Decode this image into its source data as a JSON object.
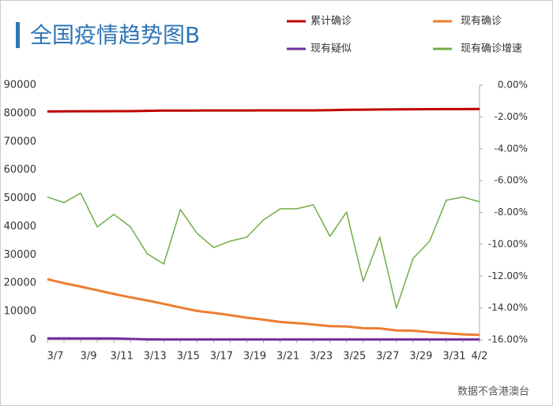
{
  "chart_data": {
    "type": "line",
    "title": "全国疫情趋势图B",
    "source": "数据不含港澳台",
    "categories": [
      "3/7",
      null,
      "3/9",
      null,
      "3/11",
      null,
      "3/13",
      null,
      "3/15",
      null,
      "3/17",
      null,
      "3/19",
      null,
      "3/21",
      null,
      "3/23",
      null,
      "3/25",
      null,
      "3/27",
      null,
      "3/29",
      null,
      "3/31",
      null,
      "4/2"
    ],
    "series": [
      {
        "name": "累计确诊",
        "color": "#c00000",
        "values": [
          80700,
          80735,
          80754,
          80778,
          80793,
          80813,
          80900,
          81000,
          81020,
          81030,
          81040,
          81050,
          81060,
          81070,
          81080,
          81090,
          81100,
          81150,
          81300,
          81340,
          81394,
          81439,
          81470,
          81500,
          81520,
          81540,
          81560
        ]
      },
      {
        "name": "现有确诊",
        "color": "#ed7d31",
        "values": [
          21400,
          20000,
          18800,
          17500,
          16200,
          15000,
          13900,
          12700,
          11400,
          10200,
          9500,
          8700,
          7800,
          7100,
          6300,
          5900,
          5400,
          4800,
          4700,
          4100,
          4000,
          3300,
          3200,
          2700,
          2300,
          1900,
          1700
        ]
      },
      {
        "name": "现有疑似",
        "color": "#7030a0",
        "values": [
          500,
          500,
          500,
          500,
          500,
          300,
          150,
          120,
          100,
          100,
          100,
          100,
          100,
          100,
          100,
          100,
          100,
          100,
          100,
          100,
          100,
          100,
          100,
          100,
          100,
          100,
          100
        ]
      },
      {
        "name": "现有确诊增速",
        "color": "#70ad47",
        "axis": "y2",
        "values": [
          -7.03,
          -7.38,
          -6.78,
          -8.91,
          -8.12,
          -8.91,
          -10.59,
          -11.24,
          -7.82,
          -9.31,
          -10.2,
          -9.8,
          -9.55,
          -8.47,
          -7.77,
          -7.77,
          -7.52,
          -9.5,
          -7.97,
          -12.33,
          -9.55,
          -14.01,
          -10.89,
          -9.8,
          -7.23,
          -7.03,
          -7.33
        ]
      }
    ],
    "ylim": [
      0,
      90000
    ],
    "yticks": [
      0,
      10000,
      20000,
      30000,
      40000,
      50000,
      60000,
      70000,
      80000,
      90000
    ],
    "y2lim": [
      -16,
      0
    ],
    "y2ticks": [
      {
        "value": 0,
        "label": "0.00%"
      },
      {
        "value": -2,
        "label": "-2.00%"
      },
      {
        "value": -4,
        "label": "-4.00%"
      },
      {
        "value": -6,
        "label": "-6.00%"
      },
      {
        "value": -8,
        "label": "-8.00%"
      },
      {
        "value": -10,
        "label": "-10.00%"
      },
      {
        "value": -12,
        "label": "-12.00%"
      },
      {
        "value": -14,
        "label": "-14.00%"
      },
      {
        "value": -16,
        "label": "-16.00%"
      }
    ],
    "grid": false,
    "legend": "top-right"
  }
}
